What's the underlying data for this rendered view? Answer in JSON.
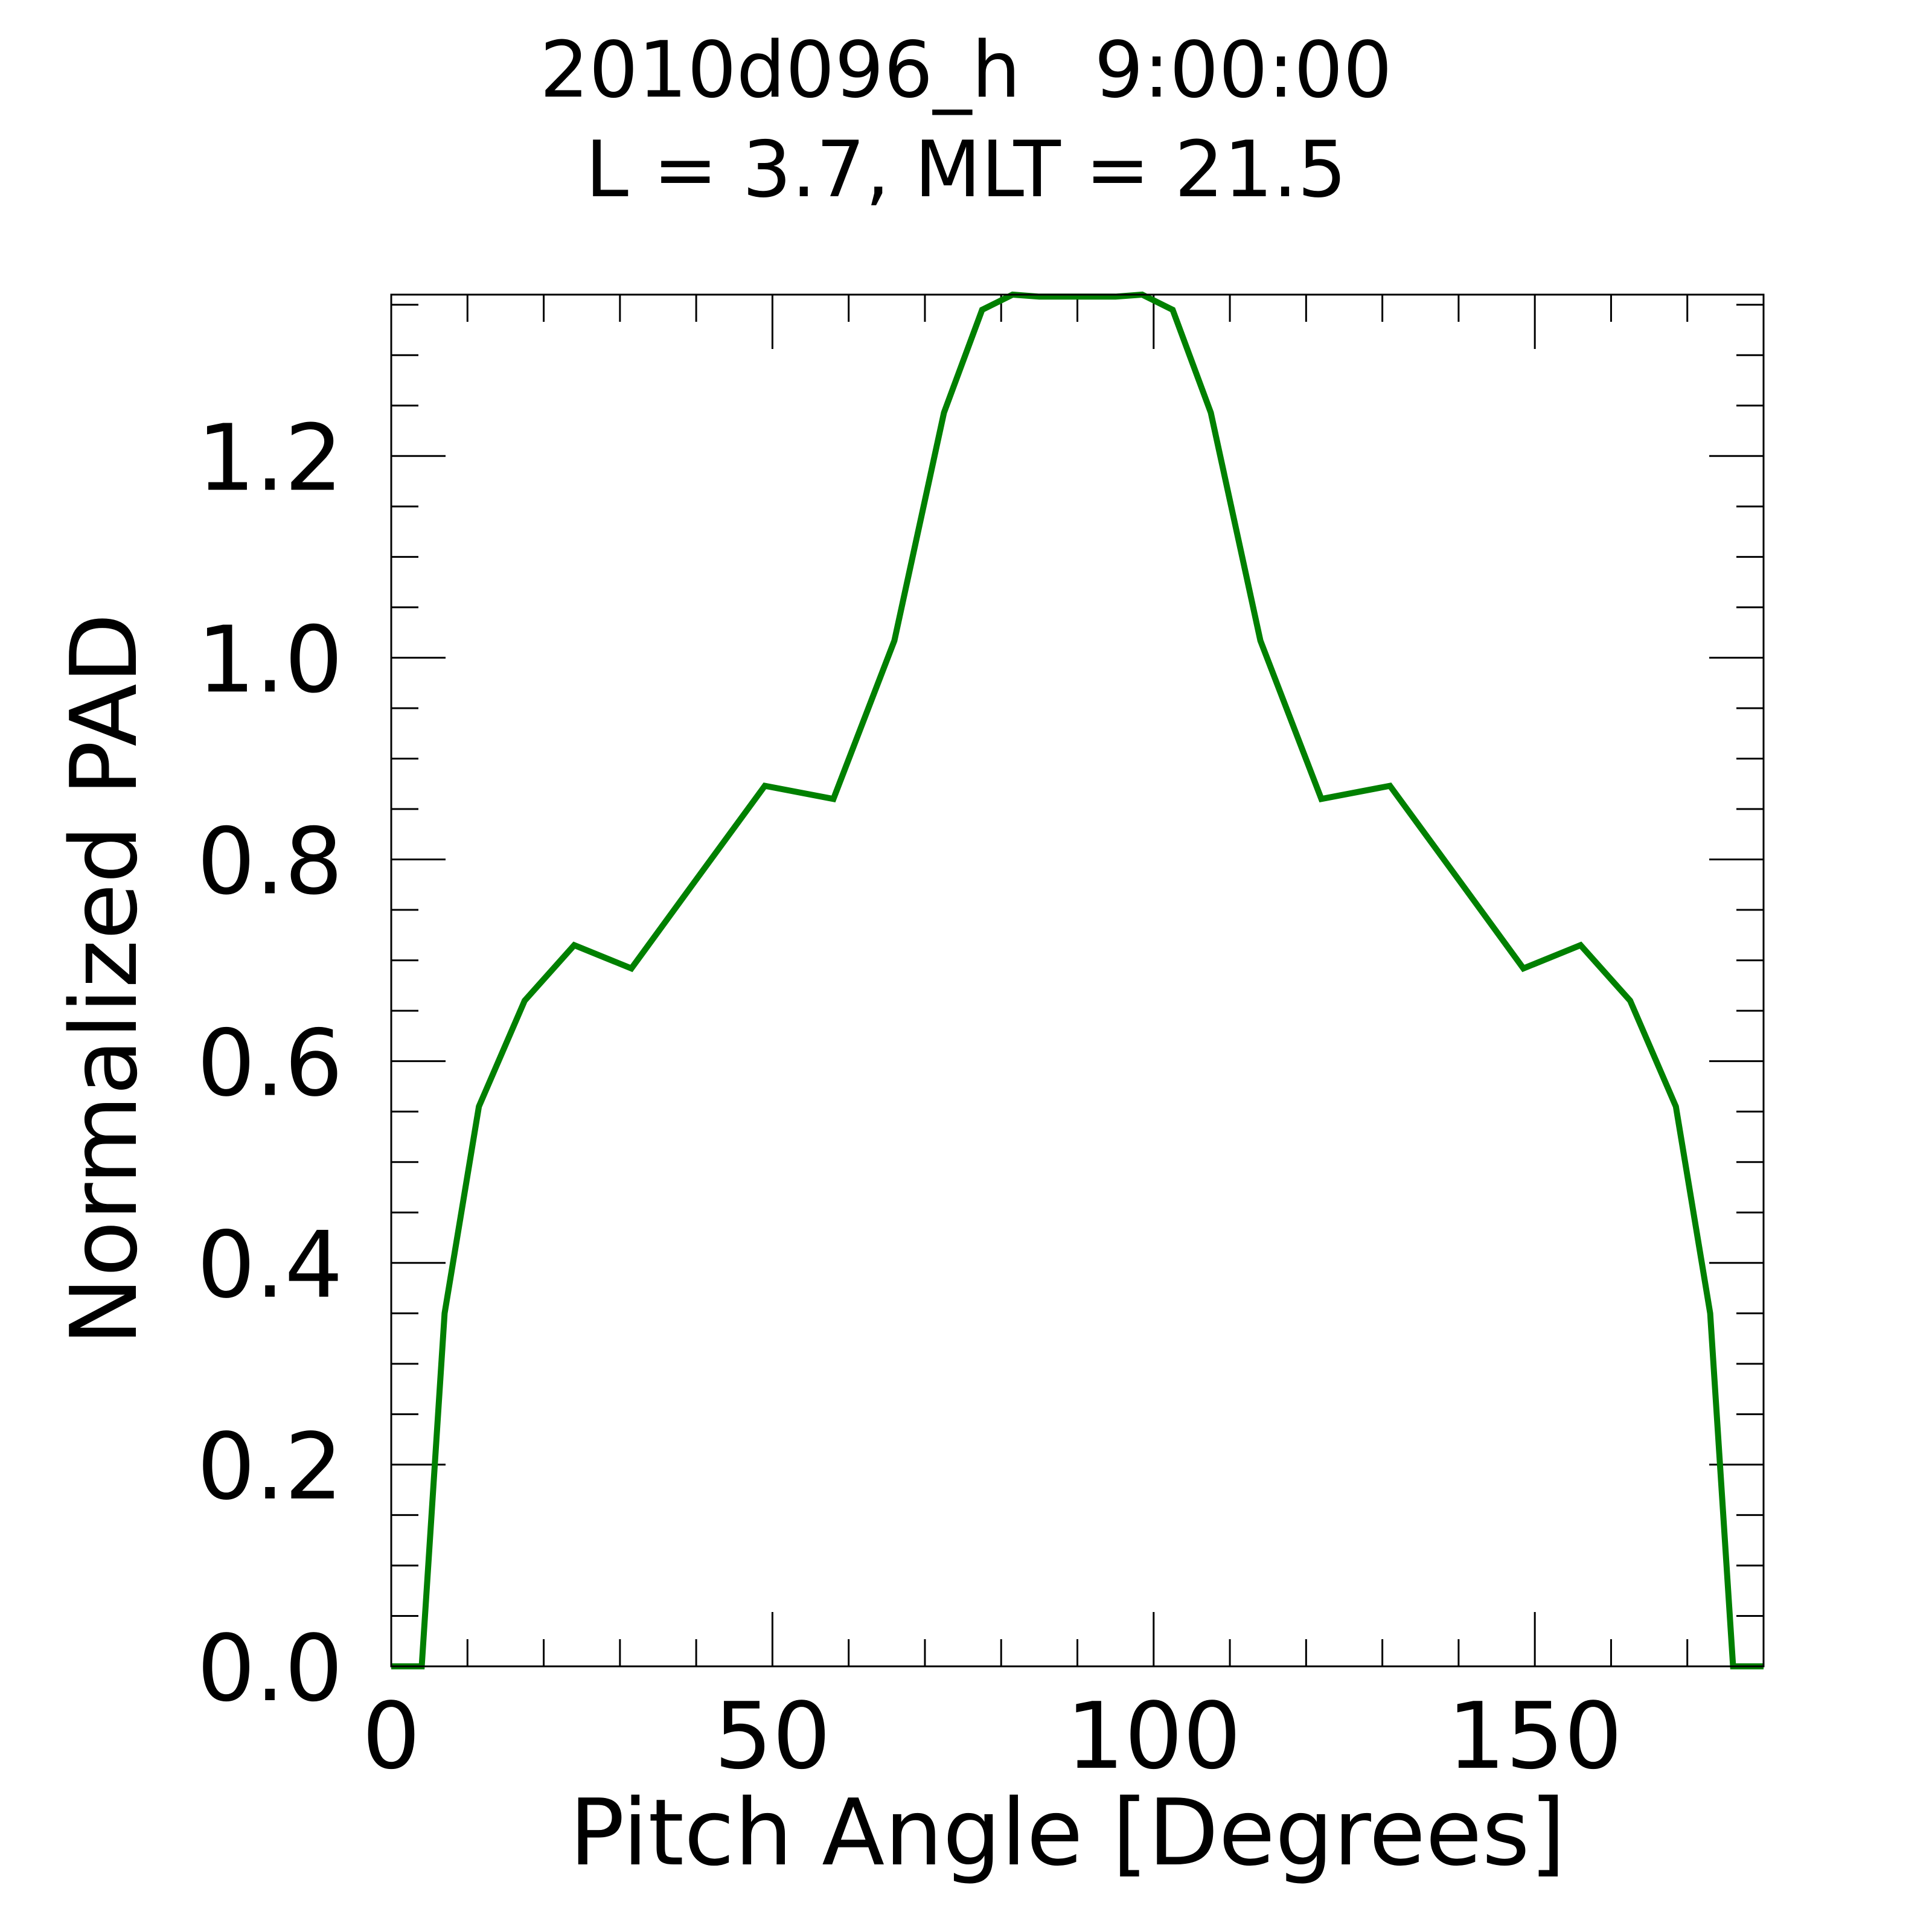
{
  "chart_data": {
    "type": "line",
    "title_lines": [
      "2010d096_h   9:00:00",
      "L = 3.7, MLT = 21.5"
    ],
    "xlabel": "Pitch Angle [Degrees]",
    "ylabel": "Normalized PAD",
    "xlim": [
      0,
      180
    ],
    "ylim": [
      0,
      1.36
    ],
    "xticks": [
      0,
      50,
      100,
      150
    ],
    "xtick_labels": [
      "0",
      "50",
      "100",
      "150"
    ],
    "yticks": [
      0.0,
      0.2,
      0.4,
      0.6,
      0.8,
      1.0,
      1.2
    ],
    "ytick_labels": [
      "0.0",
      "0.2",
      "0.4",
      "0.6",
      "0.8",
      "1.0",
      "1.2"
    ],
    "grid": false,
    "series": [
      {
        "color": "#008000",
        "x": [
          0,
          4,
          7,
          11.5,
          17.5,
          24,
          31.5,
          40,
          49,
          58,
          66,
          72.5,
          77.5,
          81.5,
          85,
          95,
          98.5,
          102.5,
          107.5,
          114,
          122,
          131,
          140,
          148.5,
          156,
          162.5,
          168.5,
          173,
          176,
          180
        ],
        "y": [
          0,
          0,
          0.35,
          0.555,
          0.66,
          0.715,
          0.692,
          0.78,
          0.873,
          0.86,
          1.017,
          1.243,
          1.345,
          1.36,
          1.358,
          1.358,
          1.36,
          1.345,
          1.243,
          1.017,
          0.86,
          0.873,
          0.78,
          0.692,
          0.715,
          0.66,
          0.555,
          0.35,
          0,
          0
        ]
      }
    ]
  }
}
